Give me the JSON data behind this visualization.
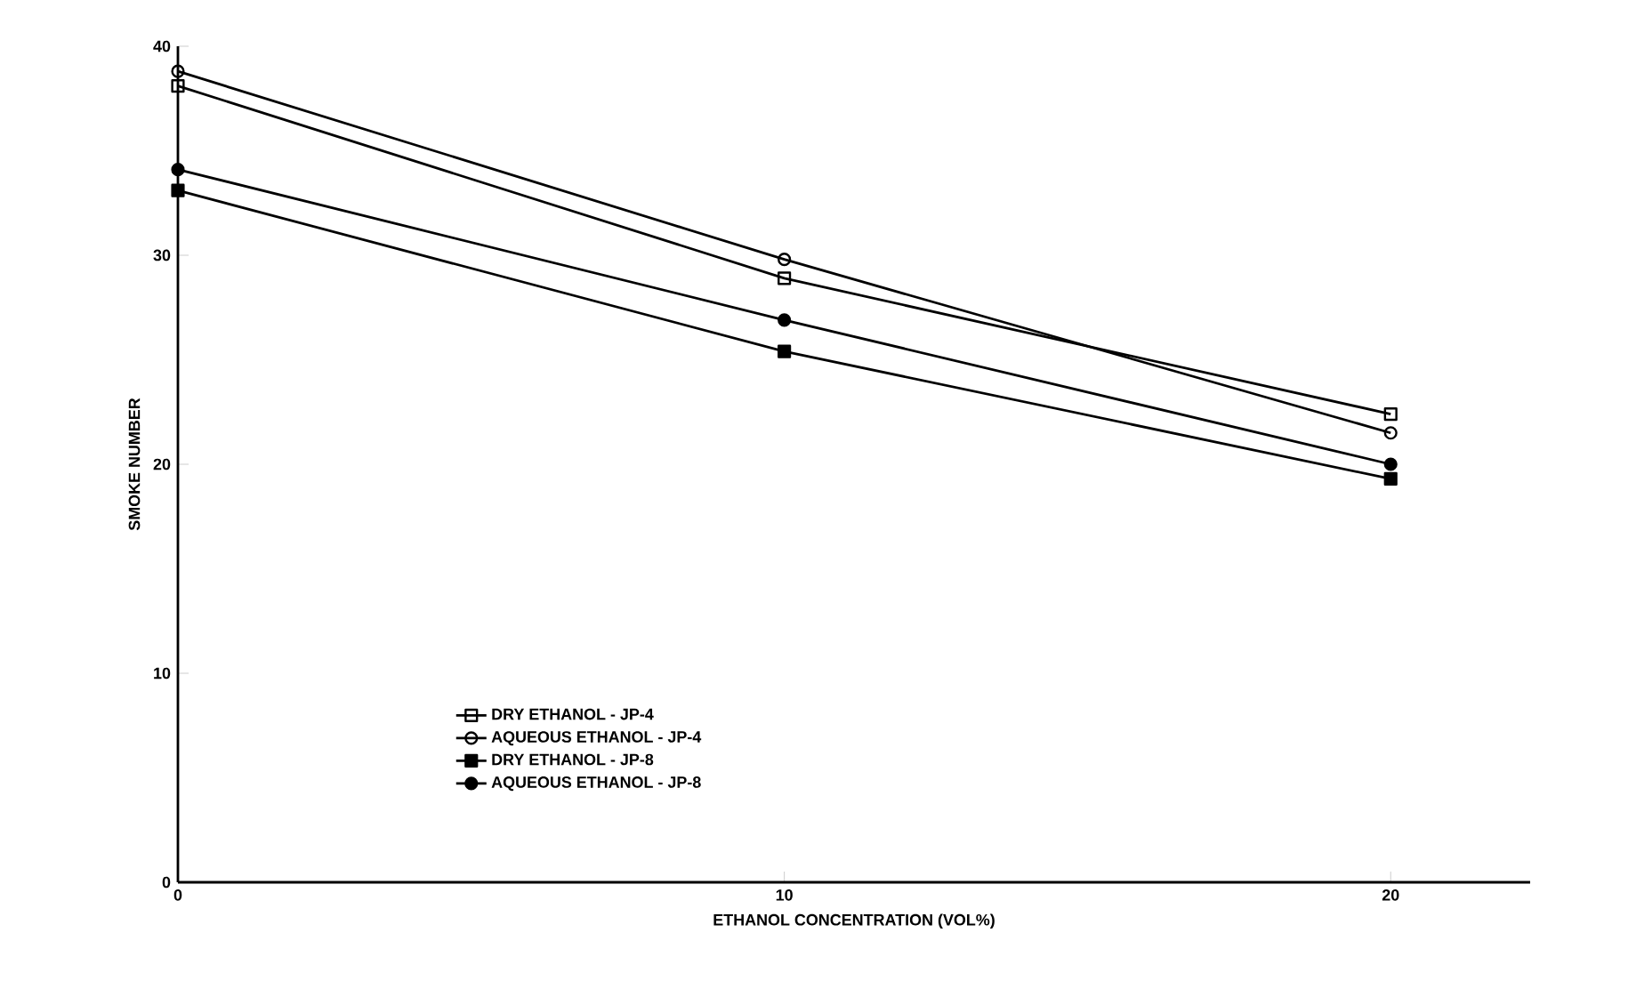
{
  "chart_data": {
    "type": "line",
    "xlabel": "ETHANOL CONCENTRATION (VOL%)",
    "ylabel": "SMOKE NUMBER",
    "x": [
      0,
      10,
      20
    ],
    "xlim": [
      0,
      22.3
    ],
    "xticks": [
      0,
      10,
      20
    ],
    "ylim": [
      0,
      40
    ],
    "yticks": [
      0,
      10,
      20,
      30,
      40
    ],
    "grid": false,
    "legend": "bottom left",
    "line_style": "solid",
    "series": [
      {
        "name": "DRY ETHANOL - JP-4",
        "color": "#000000",
        "marker": "square",
        "values": [
          38.1,
          28.9,
          22.4
        ]
      },
      {
        "name": "AQUEOUS ETHANOL - JP-4",
        "color": "#000000",
        "marker": "circle",
        "values": [
          38.8,
          29.8,
          21.5
        ]
      },
      {
        "name": "DRY ETHANOL - JP-8",
        "color": "#000000",
        "marker": "square",
        "values": [
          33.1,
          25.4,
          19.3
        ]
      },
      {
        "name": "AQUEOUS ETHANOL - JP-8",
        "color": "#000000",
        "marker": "circle",
        "values": [
          34.1,
          26.9,
          20.0
        ]
      }
    ]
  }
}
